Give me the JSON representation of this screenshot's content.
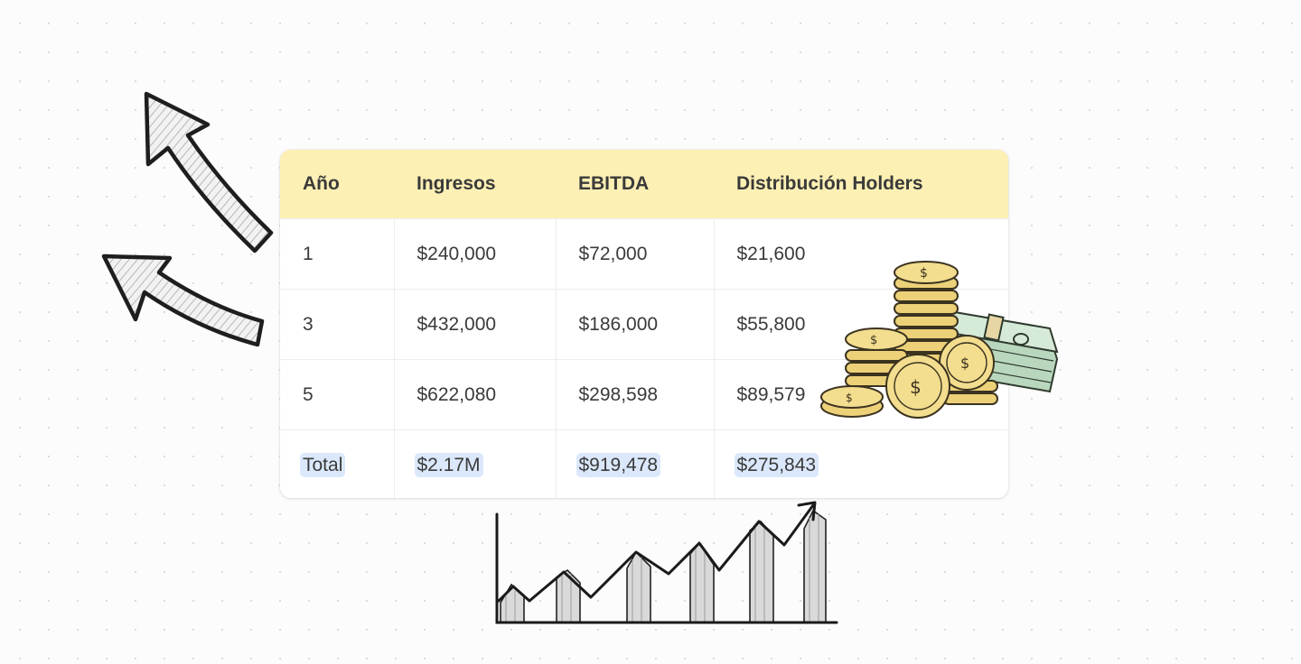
{
  "table": {
    "headers": [
      "Año",
      "Ingresos",
      "EBITDA",
      "Distribución Holders"
    ],
    "rows": [
      [
        "1",
        "$240,000",
        "$72,000",
        "$21,600"
      ],
      [
        "3",
        "$432,000",
        "$186,000",
        "$55,800"
      ],
      [
        "5",
        "$622,080",
        "$298,598",
        "$89,579"
      ]
    ],
    "total": [
      "Total",
      "$2.17M",
      "$919,478",
      "$275,843"
    ]
  },
  "colors": {
    "header_bg": "#fdf0b4",
    "total_highlight": "#dbe8fb",
    "coin_gold": "#ecd178",
    "cash_green": "#c9e3cc"
  },
  "icons": [
    "sketch-arrow-icon",
    "coin-stack-icon",
    "cash-stack-icon",
    "growth-chart-sketch-icon"
  ]
}
